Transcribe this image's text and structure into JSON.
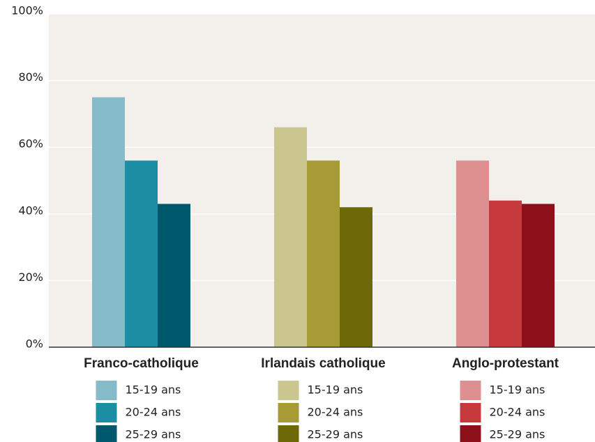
{
  "chart_data": {
    "type": "bar",
    "categories": [
      "Franco-catholique",
      "Irlandais catholique",
      "Anglo-protestant"
    ],
    "series": [
      {
        "name": "15-19 ans",
        "values": [
          75,
          66,
          56
        ],
        "colors": [
          "#86bcca",
          "#cbc68f",
          "#de9090"
        ]
      },
      {
        "name": "20-24 ans",
        "values": [
          56,
          56,
          44
        ],
        "colors": [
          "#1b8ea3",
          "#a89a35",
          "#c6393c"
        ]
      },
      {
        "name": "25-29 ans",
        "values": [
          43,
          42,
          43
        ],
        "colors": [
          "#00586d",
          "#6d6907",
          "#8b1019"
        ]
      }
    ],
    "ylim": [
      0,
      100
    ],
    "yticks": [
      {
        "value": 0,
        "label": "0%"
      },
      {
        "value": 20,
        "label": "20%"
      },
      {
        "value": 40,
        "label": "40%"
      },
      {
        "value": 60,
        "label": "60%"
      },
      {
        "value": 80,
        "label": "80%"
      },
      {
        "value": 100,
        "label": "100%"
      }
    ],
    "grid": true
  }
}
